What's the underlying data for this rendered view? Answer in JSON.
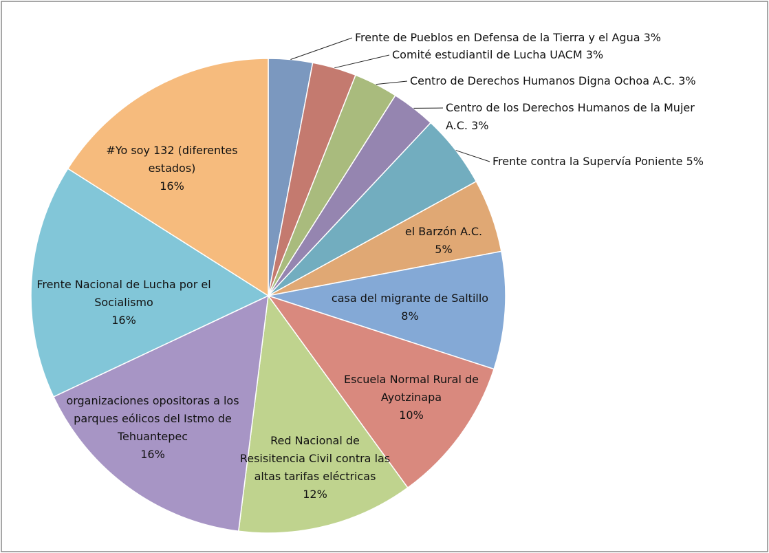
{
  "chart_data": {
    "type": "pie",
    "categories": [
      "Frente de Pueblos en Defensa de la Tierra y el Agua",
      "Comité estudiantil de Lucha UACM",
      "Centro de Derechos Humanos Digna Ochoa A.C.",
      "Centro de los Derechos Humanos de la Mujer A.C.",
      "Frente contra la Supervía Poniente",
      "el Barzón A.C.",
      "casa del migrante de Saltillo",
      "Escuela Normal Rural de Ayotzinapa",
      "Red Nacional  de Resisitencia Civil contra las altas tarifas eléctricas",
      "organizaciones opositoras a los parques eólicos del Istmo de Tehuantepec",
      "Frente Nacional de Lucha por el Socialismo",
      "#Yo soy 132 (diferentes estados)"
    ],
    "values": [
      3,
      3,
      3,
      3,
      5,
      5,
      8,
      10,
      12,
      16,
      16,
      16
    ],
    "value_labels": [
      "3%",
      "3%",
      "3%",
      "3%",
      "5%",
      "5%",
      "8%",
      "10%",
      "12%",
      "16%",
      "16%",
      "16%"
    ],
    "colors": [
      "#7b98bf",
      "#c47a6f",
      "#a9bb7d",
      "#9585b0",
      "#72adbf",
      "#e0a874",
      "#84a9d6",
      "#d9897e",
      "#bfd38e",
      "#a795c5",
      "#82c6d8",
      "#f6bb7d"
    ]
  }
}
